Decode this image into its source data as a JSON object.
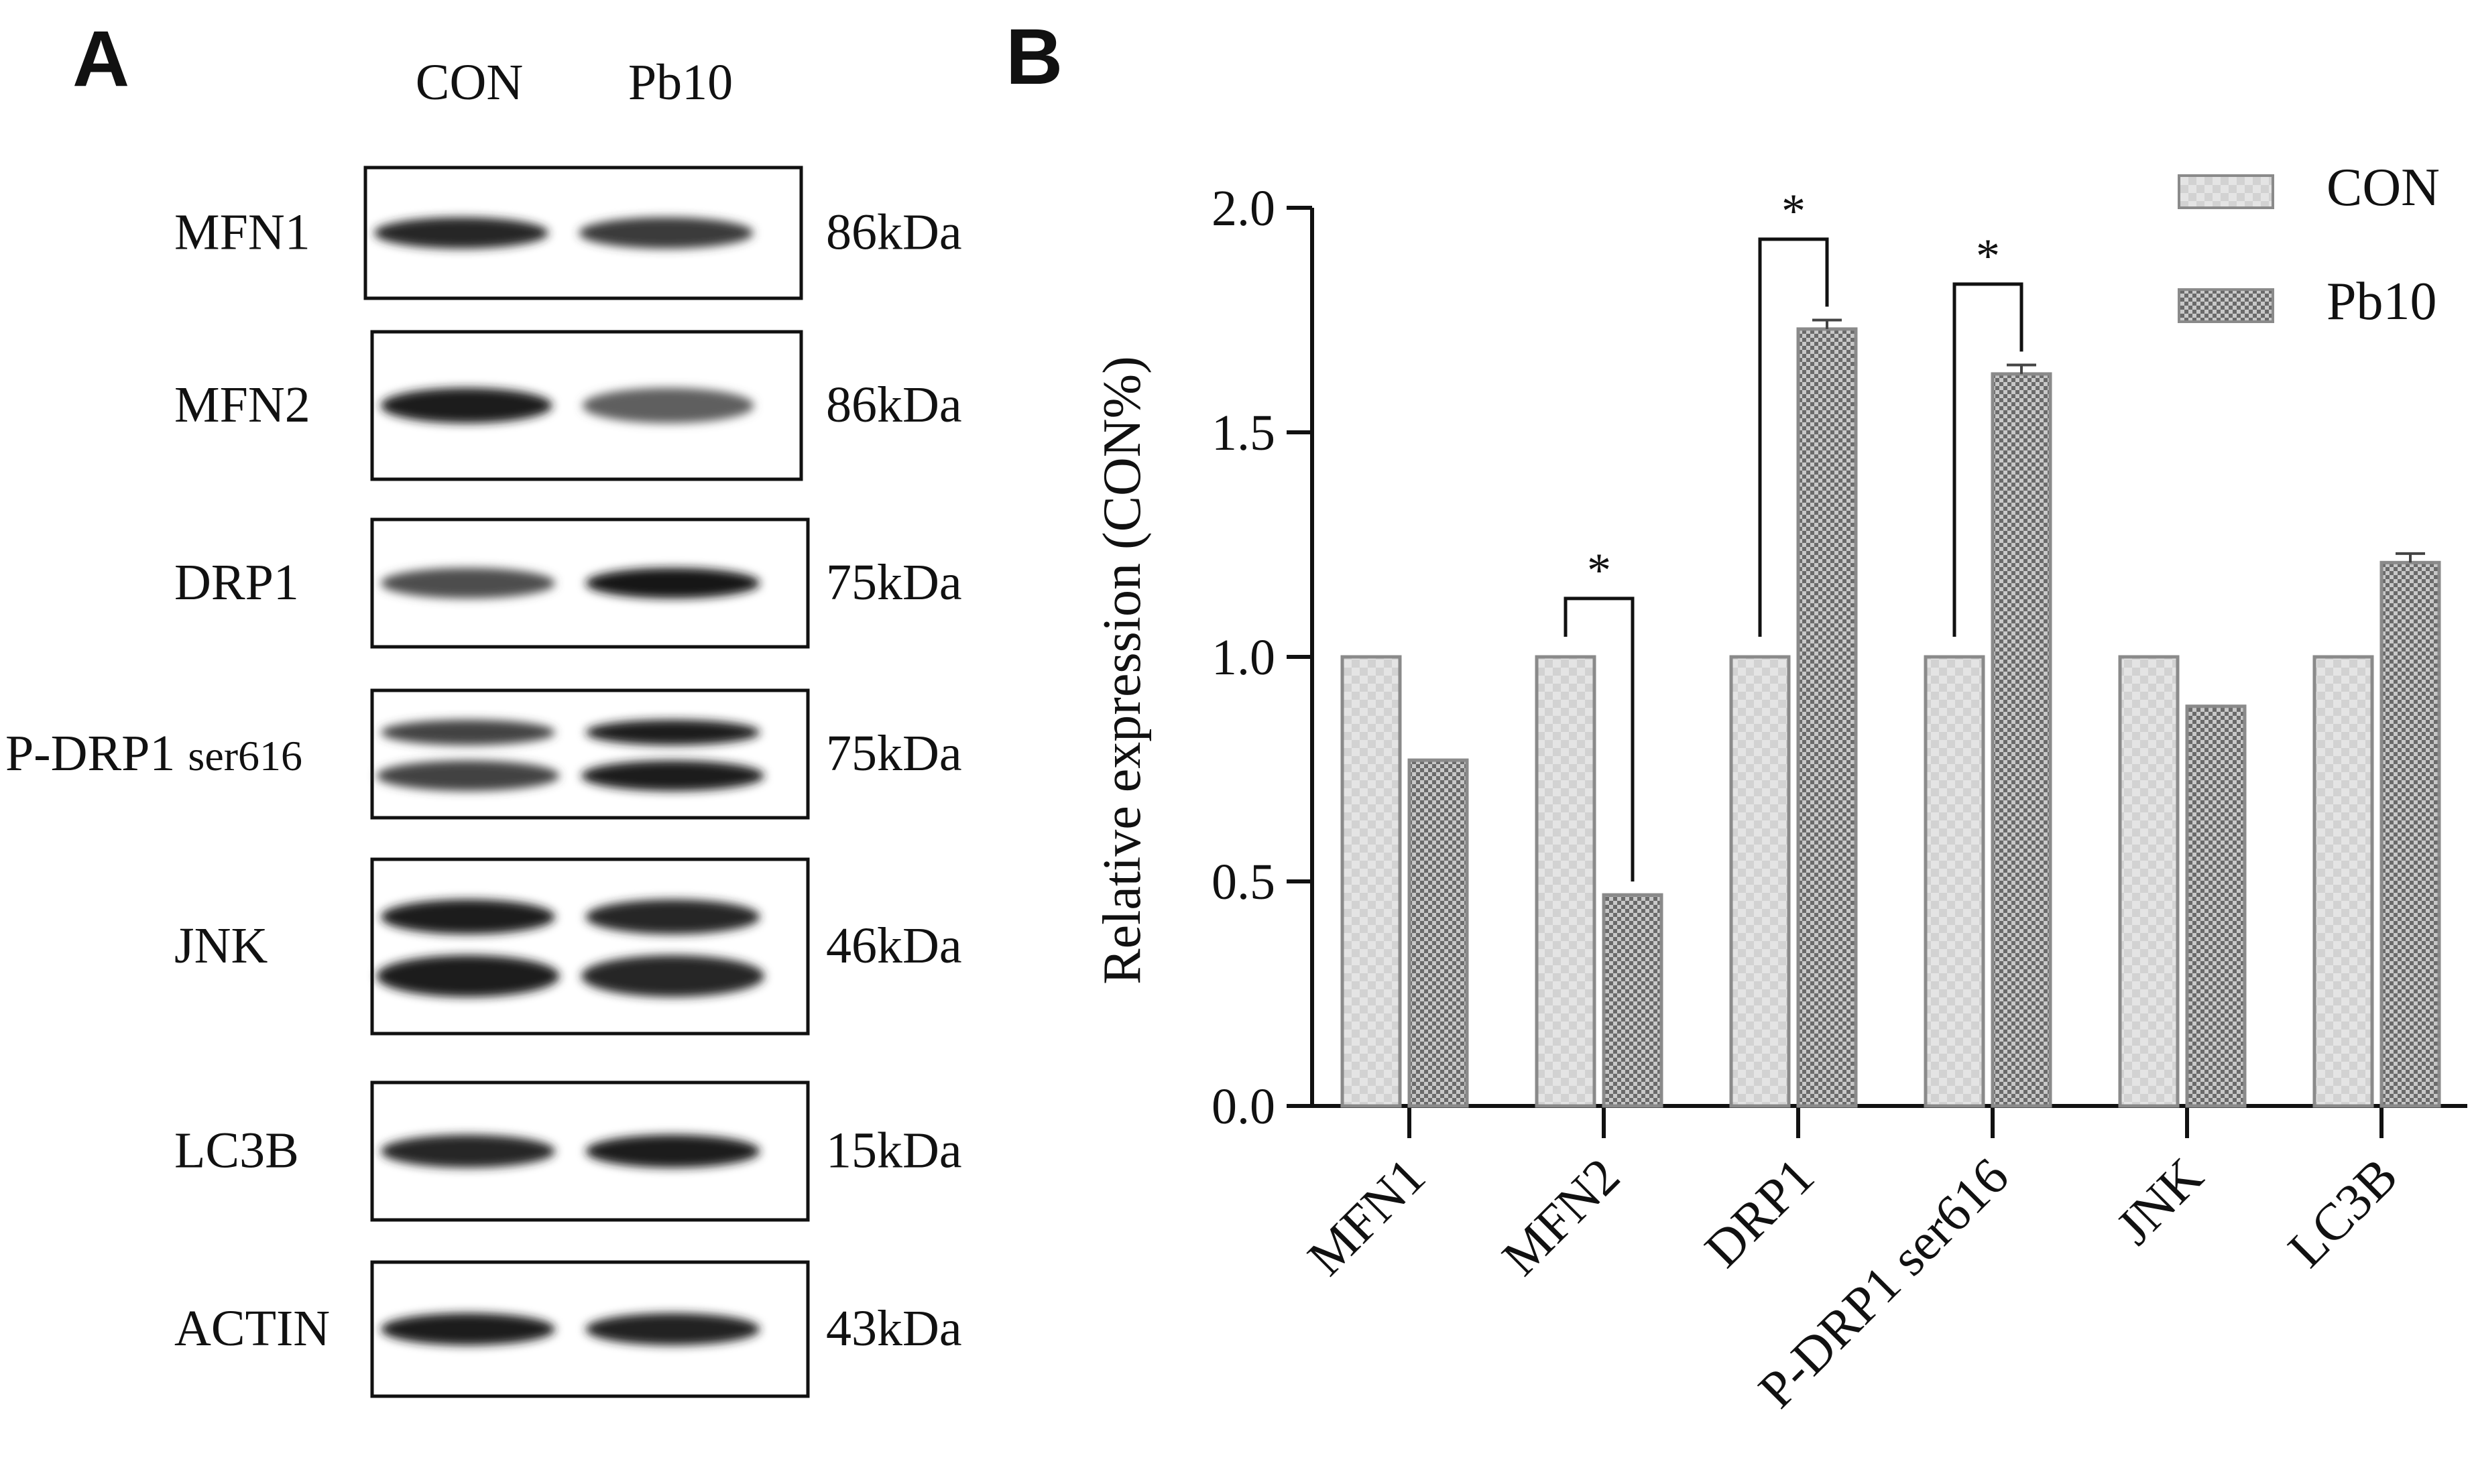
{
  "panel_a": {
    "label": "A",
    "lanes": [
      "CON",
      "Pb10"
    ],
    "blots": [
      {
        "protein": "MFN1",
        "kda": "86kDa",
        "con_intensity": 0.85,
        "pb_intensity": 0.75
      },
      {
        "protein": "MFN2",
        "kda": "86kDa",
        "con_intensity": 0.9,
        "pb_intensity": 0.55
      },
      {
        "protein": "DRP1",
        "kda": "75kDa",
        "con_intensity": 0.65,
        "pb_intensity": 0.95
      },
      {
        "protein": "P-DRP1 ser616",
        "kda": "75kDa",
        "con_intensity": 0.7,
        "pb_intensity": 0.9
      },
      {
        "protein": "JNK",
        "kda": "46kDa",
        "con_intensity": 0.9,
        "pb_intensity": 0.85
      },
      {
        "protein": "LC3B",
        "kda": "15kDa",
        "con_intensity": 0.85,
        "pb_intensity": 0.9
      },
      {
        "protein": "ACTIN",
        "kda": "43kDa",
        "con_intensity": 0.9,
        "pb_intensity": 0.88
      }
    ]
  },
  "chart_data": {
    "panel_label": "B",
    "type": "bar",
    "categories": [
      "MFN1",
      "MFN2",
      "DRP1",
      "P-DRP1 ser616",
      "JNK",
      "LC3B"
    ],
    "series": [
      {
        "name": "CON",
        "values": [
          1.0,
          1.0,
          1.0,
          1.0,
          1.0,
          1.0
        ],
        "errors": [
          0,
          0,
          0,
          0,
          0,
          0
        ],
        "pattern": "light-checker"
      },
      {
        "name": "Pb10",
        "values": [
          0.77,
          0.47,
          1.73,
          1.63,
          0.89,
          1.21
        ],
        "errors": [
          0,
          0,
          0.02,
          0.02,
          0,
          0.02
        ],
        "pattern": "dark-checker"
      }
    ],
    "ylabel": "Relative expression (CON%)",
    "xlabel": "",
    "ylim": [
      0.0,
      2.0
    ],
    "yticks": [
      "0.0",
      "0.5",
      "1.0",
      "1.5",
      "2.0"
    ],
    "ytick_values": [
      0.0,
      0.5,
      1.0,
      1.5,
      2.0
    ],
    "significance": [
      {
        "category": "MFN2",
        "label": "*"
      },
      {
        "category": "DRP1",
        "label": "*"
      },
      {
        "category": "P-DRP1 ser616",
        "label": "*"
      }
    ],
    "legend_position": "top-right",
    "grid": false
  }
}
